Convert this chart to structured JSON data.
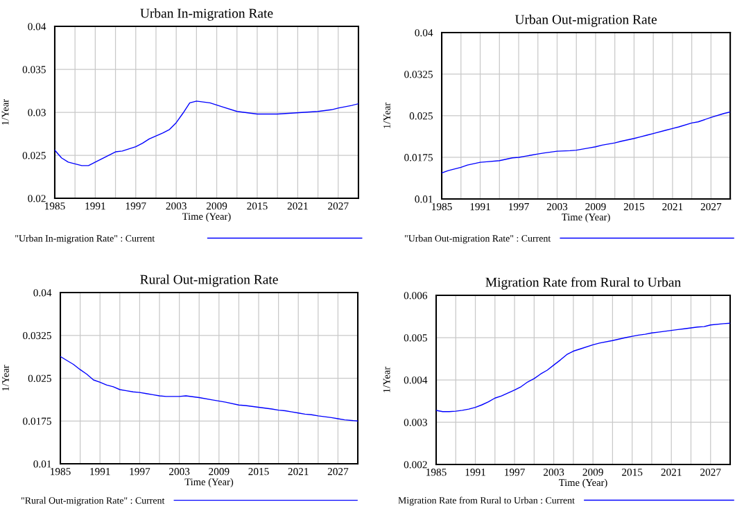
{
  "chart_data": [
    {
      "type": "line",
      "title": "Urban In-migration Rate",
      "xlabel": "Time (Year)",
      "ylabel": "1/Year",
      "x": [
        1985,
        1986,
        1987,
        1988,
        1989,
        1990,
        1991,
        1994,
        1995,
        1997,
        1998,
        1999,
        2001,
        2002,
        2003,
        2004,
        2005,
        2006,
        2008,
        2010,
        2012,
        2013,
        2015,
        2018,
        2020,
        2022,
        2024,
        2025,
        2026,
        2027,
        2029,
        2030
      ],
      "series": [
        {
          "name": "\"Urban In-migration Rate\" : Current",
          "color": "#0000ff",
          "values": [
            0.0256,
            0.0247,
            0.0242,
            0.024,
            0.0238,
            0.0238,
            0.0242,
            0.0254,
            0.0255,
            0.026,
            0.0264,
            0.0269,
            0.0276,
            0.028,
            0.0288,
            0.0299,
            0.0311,
            0.0313,
            0.0311,
            0.0306,
            0.0301,
            0.03,
            0.0298,
            0.0298,
            0.0299,
            0.03,
            0.0301,
            0.0302,
            0.0303,
            0.0305,
            0.0308,
            0.031
          ]
        }
      ],
      "xlim": [
        1985,
        2030
      ],
      "ylim": [
        0.02,
        0.04
      ],
      "xticks": [
        1985,
        {
          "value": 1988,
          "label": null
        },
        1991,
        {
          "value": 1994,
          "label": null
        },
        1997,
        {
          "value": 2000,
          "label": null
        },
        2003,
        {
          "value": 2006,
          "label": null
        },
        2009,
        {
          "value": 2012,
          "label": null
        },
        2015,
        {
          "value": 2018,
          "label": null
        },
        2021,
        {
          "value": 2024,
          "label": null
        },
        2027,
        {
          "value": 2030,
          "label": null
        }
      ],
      "yticks": [
        0.02,
        0.025,
        0.03,
        0.035,
        0.04
      ],
      "grid": true,
      "legend": "bottom",
      "line_style": "solid"
    },
    {
      "type": "line",
      "title": "Urban Out-migration Rate",
      "xlabel": "Time (Year)",
      "ylabel": "1/Year",
      "x": [
        1985,
        1986,
        1988,
        1989,
        1991,
        1992,
        1994,
        1996,
        1997,
        1998,
        1999,
        2000,
        2001,
        2003,
        2005,
        2006,
        2008,
        2009,
        2010,
        2012,
        2013,
        2015,
        2016,
        2017,
        2018,
        2020,
        2021,
        2022,
        2024,
        2025,
        2027,
        2029,
        2030
      ],
      "series": [
        {
          "name": "\"Urban Out-migration Rate\" : Current",
          "color": "#0000ff",
          "values": [
            0.0147,
            0.0151,
            0.0157,
            0.0161,
            0.0166,
            0.0167,
            0.0169,
            0.0174,
            0.0175,
            0.0177,
            0.0179,
            0.0181,
            0.0183,
            0.0186,
            0.0187,
            0.0188,
            0.0192,
            0.0194,
            0.0197,
            0.0201,
            0.0204,
            0.0209,
            0.0212,
            0.0215,
            0.0218,
            0.0224,
            0.0227,
            0.023,
            0.0237,
            0.0239,
            0.0247,
            0.0254,
            0.0257
          ]
        }
      ],
      "xlim": [
        1985,
        2030
      ],
      "ylim": [
        0.01,
        0.04
      ],
      "xticks": [
        1985,
        {
          "value": 1988,
          "label": null
        },
        1991,
        {
          "value": 1994,
          "label": null
        },
        1997,
        {
          "value": 2000,
          "label": null
        },
        2003,
        {
          "value": 2006,
          "label": null
        },
        2009,
        {
          "value": 2012,
          "label": null
        },
        2015,
        {
          "value": 2018,
          "label": null
        },
        2021,
        {
          "value": 2024,
          "label": null
        },
        2027,
        {
          "value": 2030,
          "label": null
        }
      ],
      "yticks": [
        0.01,
        0.0175,
        0.025,
        0.0325,
        0.04
      ],
      "grid": true,
      "legend": "bottom",
      "line_style": "solid"
    },
    {
      "type": "line",
      "title": "Rural Out-migration Rate",
      "xlabel": "Time (Year)",
      "ylabel": "1/Year",
      "x": [
        1985,
        1986,
        1987,
        1988,
        1989,
        1990,
        1991,
        1992,
        1993,
        1994,
        1995,
        1996,
        1997,
        1998,
        1999,
        2000,
        2001,
        2003,
        2004,
        2006,
        2008,
        2010,
        2012,
        2013,
        2015,
        2017,
        2018,
        2019,
        2020,
        2021,
        2022,
        2023,
        2024,
        2026,
        2027,
        2028,
        2030
      ],
      "series": [
        {
          "name": "\"Rural Out-migration Rate\" : Current",
          "color": "#0000ff",
          "values": [
            0.0288,
            0.0281,
            0.0274,
            0.0265,
            0.0257,
            0.0247,
            0.0243,
            0.0238,
            0.0235,
            0.023,
            0.0228,
            0.0226,
            0.0225,
            0.0223,
            0.0221,
            0.0219,
            0.0218,
            0.0218,
            0.0219,
            0.0216,
            0.0212,
            0.0208,
            0.0203,
            0.0202,
            0.0199,
            0.0196,
            0.0194,
            0.0193,
            0.0191,
            0.0189,
            0.0187,
            0.0186,
            0.0184,
            0.0181,
            0.0179,
            0.0177,
            0.0175
          ]
        }
      ],
      "xlim": [
        1985,
        2030
      ],
      "ylim": [
        0.01,
        0.04
      ],
      "xticks": [
        1985,
        {
          "value": 1988,
          "label": null
        },
        1991,
        {
          "value": 1994,
          "label": null
        },
        1997,
        {
          "value": 2000,
          "label": null
        },
        2003,
        {
          "value": 2006,
          "label": null
        },
        2009,
        {
          "value": 2012,
          "label": null
        },
        2015,
        {
          "value": 2018,
          "label": null
        },
        2021,
        {
          "value": 2024,
          "label": null
        },
        2027,
        {
          "value": 2030,
          "label": null
        }
      ],
      "yticks": [
        0.01,
        0.0175,
        0.025,
        0.0325,
        0.04
      ],
      "grid": true,
      "legend": "bottom",
      "line_style": "solid"
    },
    {
      "type": "line",
      "title": "Migration Rate from Rural to Urban",
      "xlabel": "Time (Year)",
      "ylabel": "1/Year",
      "x": [
        1985,
        1986,
        1987,
        1988,
        1989,
        1990,
        1991,
        1992,
        1993,
        1994,
        1995,
        1996,
        1997,
        1998,
        1999,
        2000,
        2001,
        2002,
        2003,
        2004,
        2005,
        2006,
        2007,
        2009,
        2010,
        2012,
        2014,
        2015,
        2016,
        2017,
        2018,
        2019,
        2021,
        2022,
        2023,
        2025,
        2026,
        2027,
        2029,
        2030
      ],
      "series": [
        {
          "name": "Migration Rate from Rural to Urban : Current",
          "color": "#0000ff",
          "values": [
            0.00328,
            0.00325,
            0.00325,
            0.00326,
            0.00328,
            0.00331,
            0.00335,
            0.00341,
            0.00348,
            0.00357,
            0.00362,
            0.00369,
            0.00376,
            0.00384,
            0.00395,
            0.00403,
            0.00414,
            0.00423,
            0.00435,
            0.00447,
            0.0046,
            0.00468,
            0.00473,
            0.00483,
            0.00487,
            0.00493,
            0.005,
            0.00503,
            0.00506,
            0.00508,
            0.00511,
            0.00513,
            0.00517,
            0.00519,
            0.00521,
            0.00525,
            0.00526,
            0.0053,
            0.00533,
            0.00534
          ]
        }
      ],
      "xlim": [
        1985,
        2030
      ],
      "ylim": [
        0.002,
        0.006
      ],
      "xticks": [
        1985,
        {
          "value": 1988,
          "label": null
        },
        1991,
        {
          "value": 1994,
          "label": null
        },
        1997,
        {
          "value": 2000,
          "label": null
        },
        2003,
        {
          "value": 2006,
          "label": null
        },
        2009,
        {
          "value": 2012,
          "label": null
        },
        2015,
        {
          "value": 2018,
          "label": null
        },
        2021,
        {
          "value": 2024,
          "label": null
        },
        2027,
        {
          "value": 2030,
          "label": null
        }
      ],
      "yticks": [
        0.002,
        0.003,
        0.004,
        0.005,
        0.006
      ],
      "grid": true,
      "legend": "bottom",
      "line_style": "solid"
    }
  ]
}
